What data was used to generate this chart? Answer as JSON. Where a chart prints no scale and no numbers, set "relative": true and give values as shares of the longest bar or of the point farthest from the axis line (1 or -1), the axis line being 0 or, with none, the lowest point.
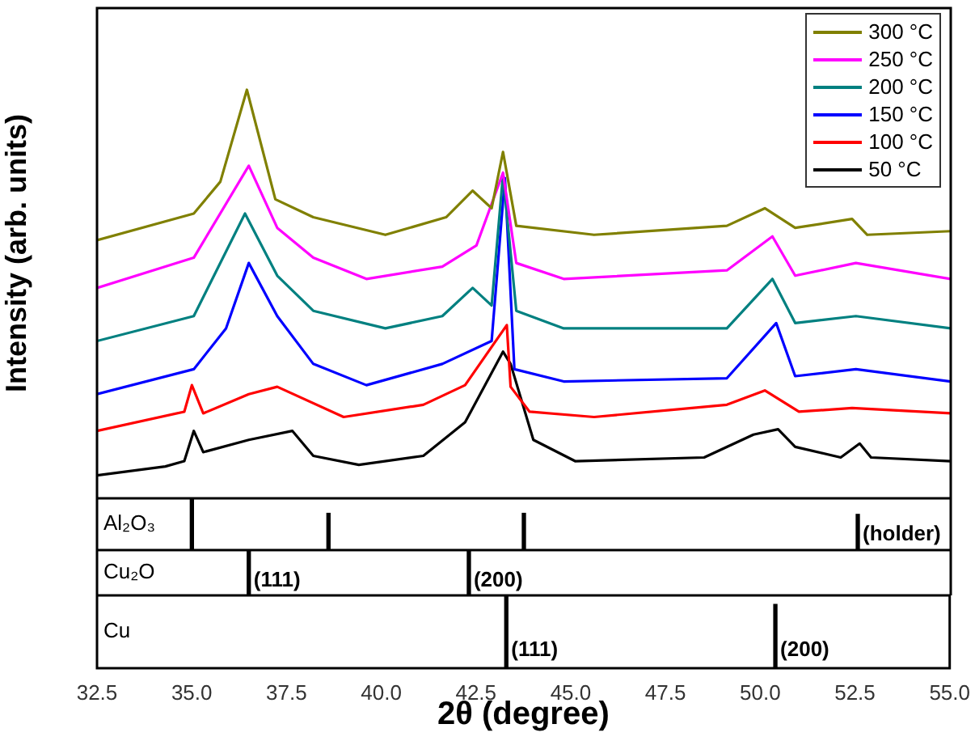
{
  "chart_data": [
    {
      "type": "line",
      "ylabel": "Intensity (arb. units)",
      "relative": true,
      "xlim": [
        32.5,
        55
      ],
      "tick_labels": false,
      "legend": "top right",
      "marker": "none",
      "series": [
        {
          "name": "300 °C",
          "color": "#808000",
          "x": [
            32.5,
            35.05,
            35.75,
            36.45,
            37.2,
            38.2,
            40.1,
            41.7,
            42.4,
            42.9,
            43.2,
            43.55,
            45.6,
            49.1,
            50.1,
            50.9,
            52.4,
            52.8,
            55.0
          ],
          "values": [
            0.632,
            0.697,
            0.775,
            1,
            0.732,
            0.688,
            0.645,
            0.688,
            0.753,
            0.71,
            0.848,
            0.667,
            0.645,
            0.667,
            0.71,
            0.662,
            0.684,
            0.645,
            0.654
          ]
        },
        {
          "name": "250 °C",
          "color": "#ff00ff",
          "x": [
            32.5,
            35.05,
            36.5,
            37.25,
            38.2,
            39.6,
            41.6,
            42.5,
            43.2,
            43.55,
            44.8,
            49.1,
            50.3,
            50.9,
            52.5,
            55.0
          ],
          "values": [
            0.515,
            0.589,
            0.814,
            0.662,
            0.589,
            0.537,
            0.567,
            0.619,
            0.797,
            0.576,
            0.537,
            0.558,
            0.641,
            0.545,
            0.576,
            0.537
          ]
        },
        {
          "name": "200 °C",
          "color": "#008080",
          "x": [
            32.5,
            35.05,
            36.4,
            37.25,
            38.2,
            40.1,
            41.6,
            42.4,
            42.9,
            43.2,
            43.55,
            44.8,
            49.1,
            50.3,
            50.9,
            52.5,
            55.0
          ],
          "values": [
            0.385,
            0.446,
            0.697,
            0.545,
            0.459,
            0.416,
            0.446,
            0.515,
            0.472,
            0.792,
            0.459,
            0.416,
            0.416,
            0.537,
            0.429,
            0.446,
            0.416
          ]
        },
        {
          "name": "150 °C",
          "color": "#0000ff",
          "x": [
            32.5,
            35.05,
            35.9,
            36.5,
            37.25,
            38.2,
            39.6,
            41.6,
            42.9,
            43.25,
            43.5,
            44.8,
            49.1,
            50.4,
            50.9,
            52.5,
            55.0
          ],
          "values": [
            0.255,
            0.316,
            0.416,
            0.576,
            0.446,
            0.329,
            0.277,
            0.329,
            0.385,
            0.784,
            0.316,
            0.286,
            0.294,
            0.429,
            0.299,
            0.316,
            0.286
          ]
        },
        {
          "name": "100 °C",
          "color": "#ff0000",
          "x": [
            32.5,
            34.8,
            35.0,
            35.3,
            36.5,
            37.25,
            39.0,
            41.1,
            42.2,
            43.3,
            43.4,
            43.9,
            45.6,
            49.1,
            50.1,
            51.0,
            52.4,
            55.0
          ],
          "values": [
            0.165,
            0.212,
            0.277,
            0.208,
            0.255,
            0.273,
            0.199,
            0.229,
            0.277,
            0.424,
            0.273,
            0.212,
            0.199,
            0.229,
            0.264,
            0.212,
            0.221,
            0.208
          ]
        },
        {
          "name": "50 °C",
          "color": "#000000",
          "x": [
            32.5,
            34.3,
            34.8,
            35.05,
            35.3,
            36.5,
            37.65,
            38.2,
            39.4,
            41.1,
            42.2,
            43.2,
            43.4,
            44.0,
            45.1,
            48.5,
            49.8,
            50.45,
            50.9,
            52.1,
            52.6,
            52.9,
            55.0
          ],
          "values": [
            0.056,
            0.078,
            0.091,
            0.165,
            0.113,
            0.143,
            0.165,
            0.104,
            0.082,
            0.104,
            0.186,
            0.359,
            0.329,
            0.143,
            0.091,
            0.1,
            0.156,
            0.169,
            0.126,
            0.1,
            0.134,
            0.1,
            0.091
          ]
        }
      ]
    },
    {
      "type": "bar",
      "title": "Al₂O₃",
      "relative": true,
      "color": "#000000",
      "x": [
        35.0,
        38.6,
        43.75,
        52.55
      ],
      "values": [
        1,
        0.71,
        0.71,
        0.69
      ],
      "xlim": [
        32.5,
        55
      ],
      "tick_labels": false,
      "annotations": [
        {
          "text": "(holder)",
          "x": 52.55,
          "y": 0.1
        }
      ]
    },
    {
      "type": "bar",
      "title": "Cu₂O",
      "relative": true,
      "color": "#000000",
      "x": [
        36.5,
        42.3
      ],
      "values": [
        1,
        1
      ],
      "xlim": [
        32.5,
        55
      ],
      "tick_labels": false,
      "annotations": [
        {
          "text": "(111)",
          "x": 36.5,
          "y": 0.1
        },
        {
          "text": "(200)",
          "x": 42.3,
          "y": 0.1
        }
      ]
    },
    {
      "type": "bar",
      "title": "Cu",
      "relative": true,
      "color": "#000000",
      "x": [
        43.3,
        50.4
      ],
      "values": [
        1,
        0.875
      ],
      "xlim": [
        32.5,
        55
      ],
      "xlabel": "2θ (degree)",
      "tick_labels": "x",
      "xticks": [
        {
          "value": 32.5,
          "label": "32.5"
        },
        {
          "value": 35,
          "label": "35.0"
        },
        {
          "value": 37.5,
          "label": "37.5"
        },
        {
          "value": 40,
          "label": "40.0"
        },
        {
          "value": 42.5,
          "label": "42.5"
        },
        {
          "value": 45,
          "label": "45.0"
        },
        {
          "value": 47.5,
          "label": "47.5"
        },
        {
          "value": 50,
          "label": "50.0"
        },
        {
          "value": 52.5,
          "label": "52.5"
        },
        {
          "value": 55,
          "label": "55.0"
        }
      ],
      "annotations": [
        {
          "text": "(111)",
          "x": 43.3,
          "y": 0.1
        },
        {
          "text": "(200)",
          "x": 50.4,
          "y": 0.1
        }
      ]
    }
  ]
}
